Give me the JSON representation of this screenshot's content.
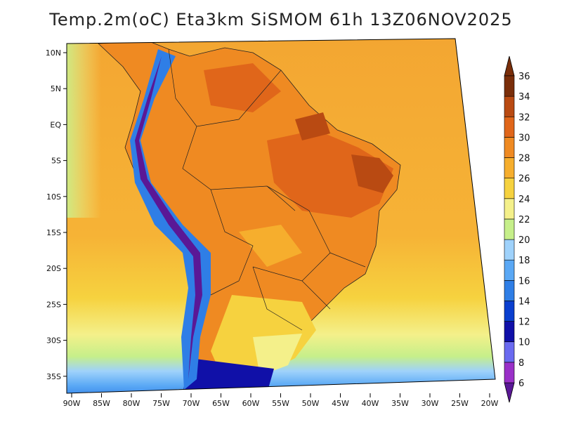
{
  "title": "Temp.2m(oC) Eta3km SiSMOM 61h 13Z06NOV2025",
  "variable": "Temp.2m",
  "units": "oC",
  "model": "Eta3km SiSMOM",
  "forecast_hour": "61h",
  "valid_time": "13Z06NOV2025",
  "lat_ticks": [
    "10N",
    "5N",
    "EQ",
    "5S",
    "10S",
    "15S",
    "20S",
    "25S",
    "30S",
    "35S"
  ],
  "lon_ticks": [
    "90W",
    "85W",
    "80W",
    "75W",
    "70W",
    "65W",
    "60W",
    "55W",
    "50W",
    "45W",
    "40W",
    "35W",
    "30W",
    "25W",
    "20W"
  ],
  "colorbar": {
    "levels": [
      "6",
      "8",
      "10",
      "12",
      "14",
      "16",
      "18",
      "20",
      "22",
      "24",
      "26",
      "28",
      "30",
      "32",
      "34",
      "36"
    ],
    "colors": [
      "#5a1896",
      "#9a30c8",
      "#6a6af0",
      "#1010a8",
      "#0a3fcf",
      "#2f7ee6",
      "#5aa8f5",
      "#9fd2fb",
      "#c6ef8a",
      "#f4f08a",
      "#f6d23f",
      "#f6ae2d",
      "#ef8a22",
      "#e0661a",
      "#b94a12",
      "#7a2e0a"
    ]
  }
}
